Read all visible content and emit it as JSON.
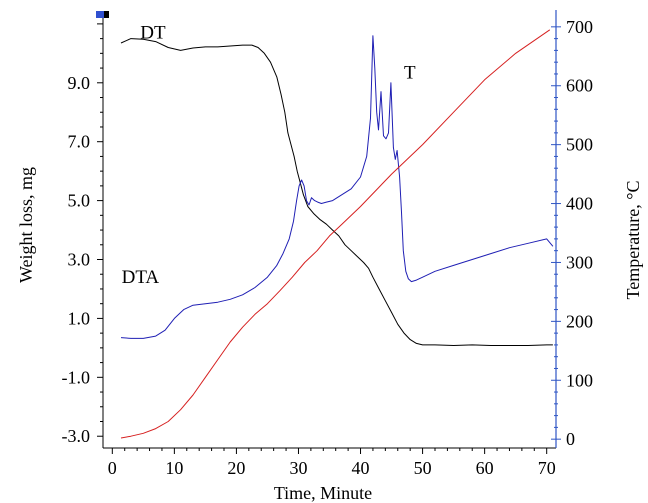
{
  "chart_data": {
    "type": "line",
    "xlabel": "Time, Minute",
    "ylabel_left": "Weight loss, mg",
    "ylabel_right": "Temperature, °C",
    "xlim": [
      -1.5,
      71.5
    ],
    "ylim_left": [
      -3.4,
      11.2
    ],
    "ylim_right": [
      -15,
      715
    ],
    "x_ticks": [
      0,
      10,
      20,
      30,
      40,
      50,
      60,
      70
    ],
    "y_left_ticks": [
      -3.0,
      -1.0,
      1.0,
      3.0,
      5.0,
      7.0,
      9.0
    ],
    "y_left_tick_labels": [
      "-3.0",
      "-1.0",
      "1.0",
      "3.0",
      "5.0",
      "7.0",
      "9.0"
    ],
    "y_right_ticks": [
      0,
      100,
      200,
      300,
      400,
      500,
      600,
      700
    ],
    "grid": false,
    "colors": {
      "dt": "#000000",
      "dta": "#1f1fb4",
      "t": "#d62020",
      "right_axis": "#2f55c4"
    },
    "series": [
      {
        "name": "DT",
        "axis": "left",
        "color": "#000000",
        "label_at": [
          4.5,
          10.5
        ],
        "x": [
          1.4,
          3,
          5,
          7,
          9,
          11,
          13,
          15,
          17,
          19,
          21,
          22.5,
          23.5,
          24.5,
          25.5,
          26.5,
          27.2,
          27.8,
          28.3,
          28.8,
          29.3,
          29.8,
          30.3,
          30.8,
          31.5,
          32.5,
          33.5,
          34.5,
          35.5,
          36.5,
          37.5,
          38.5,
          39.5,
          40.5,
          41.3,
          42,
          43,
          44,
          45,
          46,
          47,
          48,
          49,
          50,
          52,
          55,
          58,
          61,
          64,
          67,
          70,
          71
        ],
        "y": [
          10.35,
          10.5,
          10.48,
          10.4,
          10.2,
          10.1,
          10.18,
          10.22,
          10.22,
          10.25,
          10.28,
          10.28,
          10.2,
          10.0,
          9.7,
          9.2,
          8.6,
          8.0,
          7.3,
          6.9,
          6.5,
          6.0,
          5.6,
          5.2,
          4.8,
          4.55,
          4.35,
          4.2,
          4.0,
          3.8,
          3.5,
          3.3,
          3.1,
          2.9,
          2.7,
          2.4,
          2.0,
          1.6,
          1.2,
          0.8,
          0.5,
          0.28,
          0.15,
          0.1,
          0.1,
          0.08,
          0.1,
          0.08,
          0.08,
          0.08,
          0.1,
          0.1
        ]
      },
      {
        "name": "DTA",
        "axis": "left",
        "color": "#1f1fb4",
        "label_at": [
          1.5,
          2.2
        ],
        "x": [
          1.4,
          3,
          5,
          7,
          8.5,
          10,
          11.5,
          13,
          15,
          17,
          19,
          21,
          23,
          25,
          26.5,
          27.5,
          28.5,
          29.2,
          29.7,
          30.1,
          30.5,
          30.9,
          31.3,
          31.7,
          32.1,
          32.6,
          33.1,
          33.7,
          34.5,
          35.5,
          37,
          38.5,
          40,
          41,
          41.6,
          42,
          42.3,
          42.6,
          42.9,
          43.3,
          43.7,
          44.1,
          44.5,
          44.9,
          45.3,
          45.6,
          45.9,
          46.3,
          46.6,
          46.9,
          47.3,
          47.7,
          48.2,
          49,
          50,
          52,
          55,
          58,
          61,
          64,
          67,
          70,
          71
        ],
        "y": [
          0.35,
          0.32,
          0.32,
          0.4,
          0.6,
          1.0,
          1.3,
          1.45,
          1.5,
          1.55,
          1.65,
          1.8,
          2.05,
          2.4,
          2.8,
          3.2,
          3.7,
          4.3,
          5.0,
          5.5,
          5.7,
          5.5,
          5.0,
          4.85,
          5.1,
          5.0,
          4.95,
          4.9,
          4.95,
          5.0,
          5.2,
          5.4,
          5.8,
          6.5,
          7.8,
          10.6,
          9.5,
          8.0,
          7.4,
          8.7,
          7.2,
          7.1,
          7.3,
          9.0,
          6.8,
          6.4,
          6.7,
          5.8,
          4.6,
          3.3,
          2.6,
          2.35,
          2.25,
          2.3,
          2.4,
          2.6,
          2.8,
          3.0,
          3.2,
          3.4,
          3.55,
          3.7,
          3.45
        ]
      },
      {
        "name": "T",
        "axis": "right",
        "color": "#d62020",
        "label_at": [
          47,
          612
        ],
        "x": [
          1.4,
          3,
          5,
          7,
          9,
          11,
          13,
          15,
          17,
          19,
          21,
          23,
          25,
          27,
          29,
          31,
          33,
          35,
          37,
          40,
          45,
          50,
          55,
          60,
          65,
          70.5
        ],
        "y": [
          2,
          5,
          10,
          18,
          30,
          50,
          75,
          105,
          135,
          165,
          190,
          212,
          230,
          252,
          275,
          300,
          320,
          345,
          365,
          395,
          450,
          500,
          555,
          610,
          655,
          695
        ]
      }
    ]
  }
}
